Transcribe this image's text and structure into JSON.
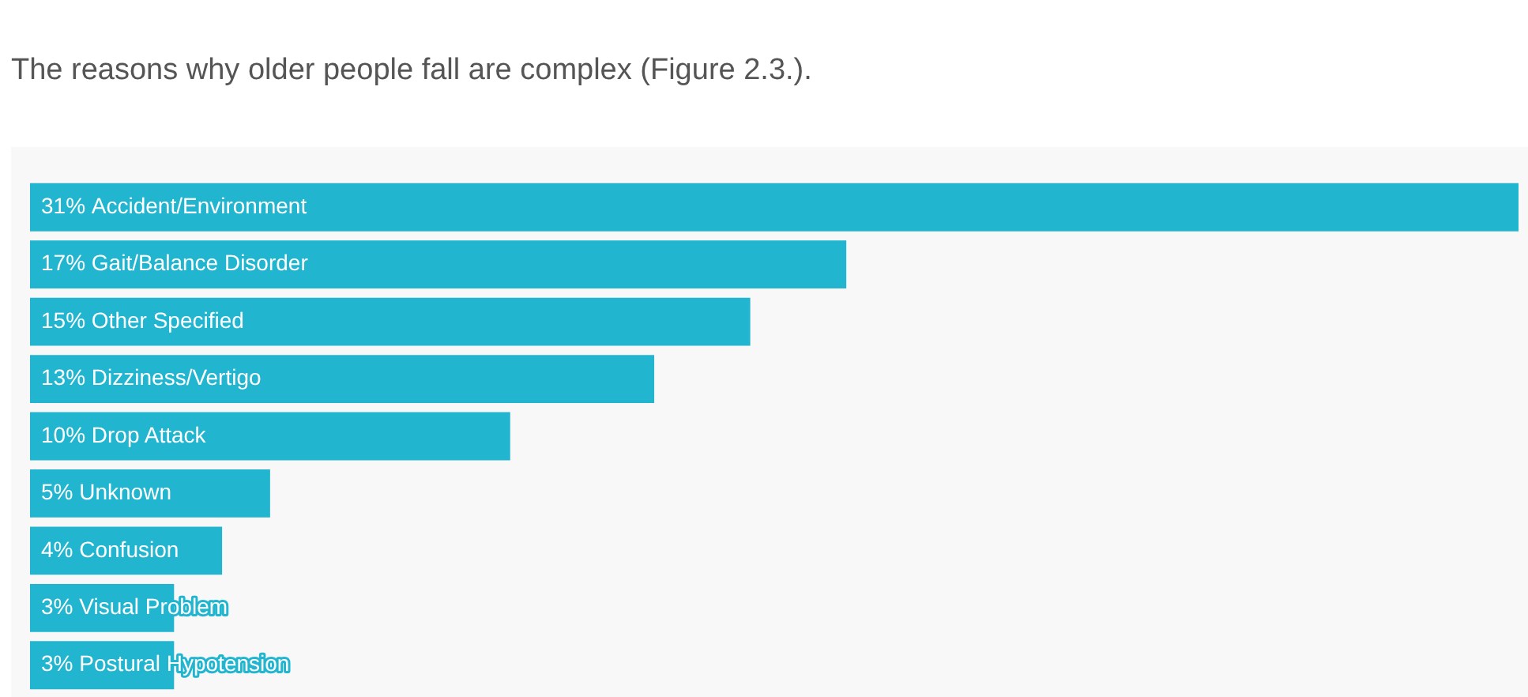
{
  "chart_data": {
    "type": "bar",
    "orientation": "horizontal",
    "title": "The reasons why older people fall are complex (Figure 2.3.).",
    "categories": [
      "Accident/Environment",
      "Gait/Balance Disorder",
      "Other Specified",
      "Dizziness/Vertigo",
      "Drop Attack",
      "Unknown",
      "Confusion",
      "Visual Problem",
      "Postural Hypotension"
    ],
    "values": [
      31,
      17,
      15,
      13,
      10,
      5,
      4,
      3,
      3
    ],
    "value_labels": [
      "31%",
      "17%",
      "15%",
      "13%",
      "10%",
      "5%",
      "4%",
      "3%",
      "3%"
    ],
    "color": "#22b5d0",
    "tick_labels": false,
    "grid": false,
    "legend": false
  }
}
